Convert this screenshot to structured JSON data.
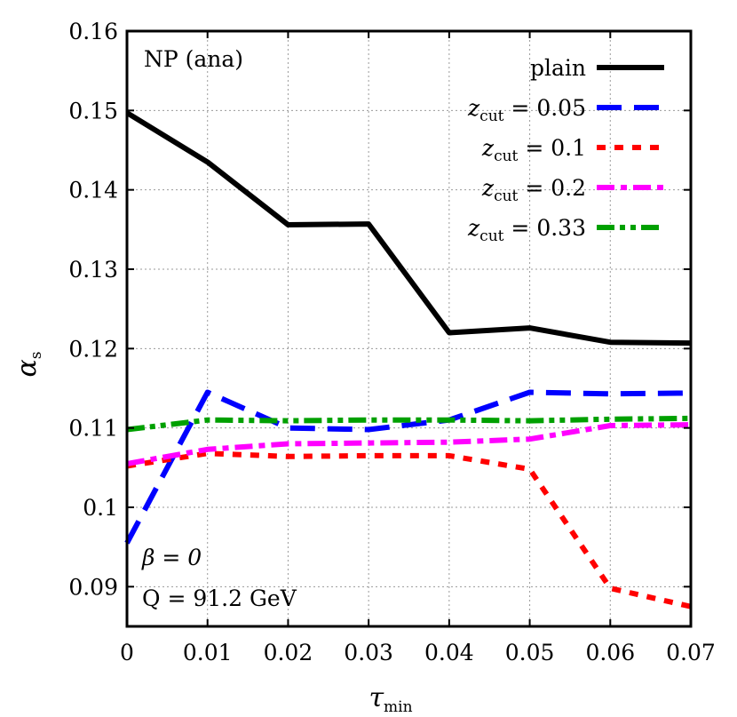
{
  "chart_data": {
    "type": "line",
    "title": "",
    "annotation_top": "NP (ana)",
    "annotation_beta": "β = 0",
    "annotation_Q": "Q = 91.2 GeV",
    "xlabel": "τ",
    "xlabel_sub": "min",
    "ylabel": "α",
    "ylabel_sub": "s",
    "xlim": [
      0,
      0.07
    ],
    "ylim": [
      0.085,
      0.16
    ],
    "xticks": [
      "0",
      "0.01",
      "0.02",
      "0.03",
      "0.04",
      "0.05",
      "0.06",
      "0.07"
    ],
    "yticks": [
      "0.09",
      "0.1",
      "0.11",
      "0.12",
      "0.13",
      "0.14",
      "0.15",
      "0.16"
    ],
    "xtick_values": [
      0,
      0.01,
      0.02,
      0.03,
      0.04,
      0.05,
      0.06,
      0.07
    ],
    "ytick_values": [
      0.09,
      0.1,
      0.11,
      0.12,
      0.13,
      0.14,
      0.15,
      0.16
    ],
    "grid": true,
    "legend_position": "top-right",
    "series": [
      {
        "name": "plain",
        "color": "#000000",
        "dash": "solid",
        "x": [
          0,
          0.01,
          0.02,
          0.03,
          0.04,
          0.05,
          0.06,
          0.07
        ],
        "y": [
          0.1497,
          0.1435,
          0.1356,
          0.1357,
          0.122,
          0.1226,
          0.1208,
          0.1207
        ]
      },
      {
        "name": "zcut = 0.05",
        "name_prefix": "z",
        "name_sub": "cut",
        "name_suffix": " = 0.05",
        "color": "#0000ff",
        "dash": "long-dash",
        "x": [
          0,
          0.01,
          0.02,
          0.03,
          0.04,
          0.05,
          0.06,
          0.07
        ],
        "y": [
          0.0955,
          0.1145,
          0.11,
          0.1098,
          0.111,
          0.1145,
          0.1143,
          0.1144
        ]
      },
      {
        "name": "zcut = 0.1",
        "name_prefix": "z",
        "name_sub": "cut",
        "name_suffix": " = 0.1",
        "color": "#ff0000",
        "dash": "short-dash",
        "x": [
          0,
          0.01,
          0.02,
          0.03,
          0.04,
          0.05,
          0.06,
          0.07
        ],
        "y": [
          0.1052,
          0.1068,
          0.1064,
          0.1065,
          0.1065,
          0.1048,
          0.0898,
          0.0875
        ]
      },
      {
        "name": "zcut = 0.2",
        "name_prefix": "z",
        "name_sub": "cut",
        "name_suffix": " = 0.2",
        "color": "#ff00ff",
        "dash": "dash-dot",
        "x": [
          0,
          0.01,
          0.02,
          0.03,
          0.04,
          0.05,
          0.06,
          0.07
        ],
        "y": [
          0.1055,
          0.1073,
          0.108,
          0.1081,
          0.1082,
          0.1086,
          0.1103,
          0.1104
        ]
      },
      {
        "name": "zcut = 0.33",
        "name_prefix": "z",
        "name_sub": "cut",
        "name_suffix": " = 0.33",
        "color": "#00a000",
        "dash": "dash-dot-dot",
        "x": [
          0,
          0.01,
          0.02,
          0.03,
          0.04,
          0.05,
          0.06,
          0.07
        ],
        "y": [
          0.1098,
          0.111,
          0.1109,
          0.111,
          0.111,
          0.1109,
          0.1111,
          0.1112
        ]
      }
    ]
  }
}
